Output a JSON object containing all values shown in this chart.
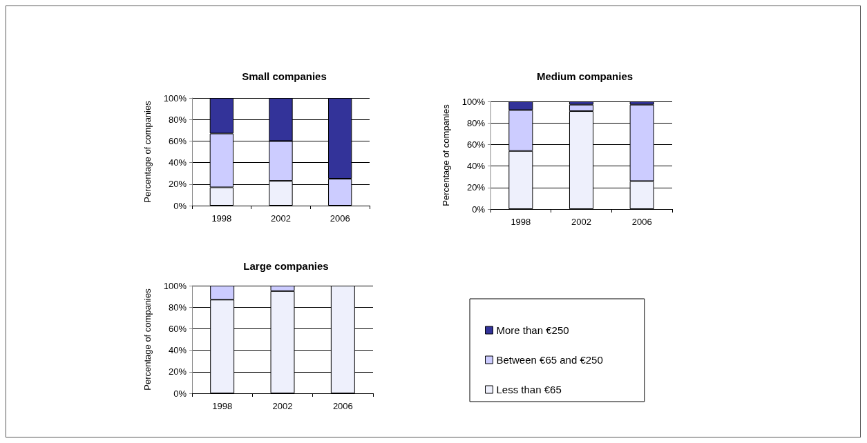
{
  "chart_data": [
    {
      "type": "bar",
      "stacked": true,
      "title": "Small companies",
      "ylabel": "Percentage of companies",
      "categories": [
        "1998",
        "2002",
        "2006"
      ],
      "ylim": [
        0,
        100
      ],
      "yticks": [
        {
          "value": 0,
          "label": "0%"
        },
        {
          "value": 20,
          "label": "20%"
        },
        {
          "value": 40,
          "label": "40%"
        },
        {
          "value": 60,
          "label": "60%"
        },
        {
          "value": 80,
          "label": "80%"
        },
        {
          "value": 100,
          "label": "100%"
        }
      ],
      "grid": "y",
      "legend": false,
      "series": [
        {
          "color": "#eef0fc",
          "values": [
            17,
            23,
            0
          ]
        },
        {
          "color": "#ccccff",
          "values": [
            50,
            37,
            25
          ]
        },
        {
          "color": "#333399",
          "values": [
            33,
            40,
            75
          ]
        }
      ]
    },
    {
      "type": "bar",
      "stacked": true,
      "title": "Medium companies",
      "ylabel": "Percentage of companies",
      "categories": [
        "1998",
        "2002",
        "2006"
      ],
      "ylim": [
        0,
        100
      ],
      "yticks": [
        {
          "value": 0,
          "label": "0%"
        },
        {
          "value": 20,
          "label": "20%"
        },
        {
          "value": 40,
          "label": "40%"
        },
        {
          "value": 60,
          "label": "60%"
        },
        {
          "value": 80,
          "label": "80%"
        },
        {
          "value": 100,
          "label": "100%"
        }
      ],
      "grid": "y",
      "legend": false,
      "series": [
        {
          "color": "#eef0fc",
          "values": [
            54,
            91,
            26
          ]
        },
        {
          "color": "#ccccff",
          "values": [
            38,
            6,
            71
          ]
        },
        {
          "color": "#333399",
          "values": [
            8,
            3,
            3
          ]
        }
      ]
    },
    {
      "type": "bar",
      "stacked": true,
      "title": "Large companies",
      "ylabel": "Percentage of companies",
      "categories": [
        "1998",
        "2002",
        "2006"
      ],
      "ylim": [
        0,
        100
      ],
      "yticks": [
        {
          "value": 0,
          "label": "0%"
        },
        {
          "value": 20,
          "label": "20%"
        },
        {
          "value": 40,
          "label": "40%"
        },
        {
          "value": 60,
          "label": "60%"
        },
        {
          "value": 80,
          "label": "80%"
        },
        {
          "value": 100,
          "label": "100%"
        }
      ],
      "grid": "y",
      "legend": "right",
      "series": [
        {
          "name": "Less than €65",
          "color": "#eef0fc",
          "values": [
            87,
            95,
            100
          ]
        },
        {
          "name": "Between €65 and €250",
          "color": "#ccccff",
          "values": [
            13,
            5,
            0
          ]
        },
        {
          "name": "More than €250",
          "color": "#333399",
          "values": [
            0,
            0,
            0
          ]
        }
      ]
    }
  ]
}
